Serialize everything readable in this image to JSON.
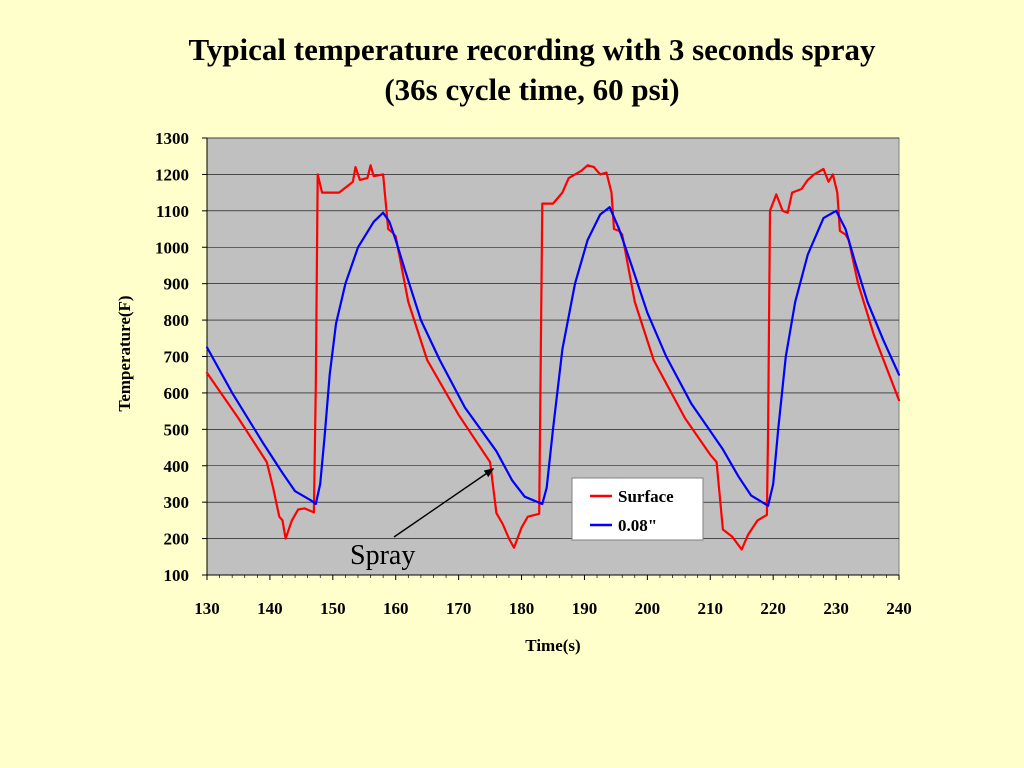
{
  "slide": {
    "title_line1": "Typical temperature recording with 3 seconds spray",
    "title_line2": "(36s cycle time, 60 psi)"
  },
  "chart_data": {
    "type": "line",
    "title": "",
    "xlabel": "Time(s)",
    "ylabel": "Temperature(F)",
    "xlim": [
      130,
      240
    ],
    "ylim": [
      100,
      1300
    ],
    "xticks": [
      130,
      140,
      150,
      160,
      170,
      180,
      190,
      200,
      210,
      220,
      230,
      240
    ],
    "yticks": [
      100,
      200,
      300,
      400,
      500,
      600,
      700,
      800,
      900,
      1000,
      1100,
      1200,
      1300
    ],
    "grid": true,
    "plot_background": "#C0C0C0",
    "legend_position": "bottom-right",
    "series": [
      {
        "name": "Surface",
        "color": "#FF0000",
        "points": [
          [
            130,
            655
          ],
          [
            135,
            530
          ],
          [
            139.5,
            410
          ],
          [
            140.5,
            340
          ],
          [
            141.5,
            260
          ],
          [
            142,
            250
          ],
          [
            142.5,
            200
          ],
          [
            143.5,
            250
          ],
          [
            144.5,
            280
          ],
          [
            145.5,
            283
          ],
          [
            147,
            272
          ],
          [
            147.3,
            620
          ],
          [
            147.6,
            1200
          ],
          [
            148.3,
            1150
          ],
          [
            150,
            1150
          ],
          [
            151,
            1150
          ],
          [
            152.5,
            1170
          ],
          [
            153.2,
            1180
          ],
          [
            153.6,
            1220
          ],
          [
            154.3,
            1185
          ],
          [
            155.5,
            1190
          ],
          [
            156,
            1225
          ],
          [
            156.5,
            1195
          ],
          [
            158,
            1200
          ],
          [
            158.8,
            1050
          ],
          [
            159.5,
            1040
          ],
          [
            160,
            1030
          ],
          [
            162,
            850
          ],
          [
            165,
            690
          ],
          [
            170,
            540
          ],
          [
            175,
            410
          ],
          [
            176,
            270
          ],
          [
            177,
            240
          ],
          [
            178,
            200
          ],
          [
            178.8,
            175
          ],
          [
            180,
            230
          ],
          [
            181,
            260
          ],
          [
            182.8,
            268
          ],
          [
            183,
            600
          ],
          [
            183.3,
            1120
          ],
          [
            185,
            1120
          ],
          [
            186.5,
            1150
          ],
          [
            187.5,
            1190
          ],
          [
            189.5,
            1210
          ],
          [
            190.5,
            1225
          ],
          [
            191.5,
            1220
          ],
          [
            192.5,
            1200
          ],
          [
            193.5,
            1205
          ],
          [
            194.3,
            1150
          ],
          [
            194.7,
            1050
          ],
          [
            195.5,
            1045
          ],
          [
            196,
            1035
          ],
          [
            198,
            850
          ],
          [
            201,
            690
          ],
          [
            206,
            530
          ],
          [
            210,
            430
          ],
          [
            211,
            410
          ],
          [
            212,
            225
          ],
          [
            213.5,
            205
          ],
          [
            215,
            170
          ],
          [
            216,
            210
          ],
          [
            217.5,
            250
          ],
          [
            219,
            265
          ],
          [
            219.2,
            500
          ],
          [
            219.5,
            1100
          ],
          [
            220.5,
            1145
          ],
          [
            221.5,
            1100
          ],
          [
            222.3,
            1095
          ],
          [
            223,
            1150
          ],
          [
            224.5,
            1160
          ],
          [
            225.5,
            1185
          ],
          [
            226.5,
            1200
          ],
          [
            228,
            1215
          ],
          [
            228.8,
            1180
          ],
          [
            229.5,
            1200
          ],
          [
            230.2,
            1150
          ],
          [
            230.6,
            1045
          ],
          [
            231.5,
            1035
          ],
          [
            232,
            1020
          ],
          [
            233.5,
            900
          ],
          [
            236,
            760
          ],
          [
            240,
            580
          ]
        ]
      },
      {
        "name": "0.08\"",
        "color": "#0000FF",
        "points": [
          [
            130,
            725
          ],
          [
            134,
            600
          ],
          [
            139,
            460
          ],
          [
            142,
            380
          ],
          [
            144,
            330
          ],
          [
            146.5,
            305
          ],
          [
            147.3,
            295
          ],
          [
            148,
            350
          ],
          [
            148.7,
            480
          ],
          [
            149.5,
            650
          ],
          [
            150.5,
            790
          ],
          [
            152,
            900
          ],
          [
            154,
            1000
          ],
          [
            156.5,
            1070
          ],
          [
            158,
            1095
          ],
          [
            159,
            1070
          ],
          [
            160,
            1020
          ],
          [
            161.5,
            935
          ],
          [
            164,
            800
          ],
          [
            167,
            690
          ],
          [
            171,
            560
          ],
          [
            176,
            440
          ],
          [
            178.5,
            360
          ],
          [
            180.5,
            315
          ],
          [
            183.3,
            295
          ],
          [
            184,
            340
          ],
          [
            185,
            500
          ],
          [
            186.5,
            720
          ],
          [
            188.5,
            900
          ],
          [
            190.5,
            1020
          ],
          [
            192.5,
            1090
          ],
          [
            194,
            1110
          ],
          [
            195.5,
            1050
          ],
          [
            197.5,
            950
          ],
          [
            200,
            820
          ],
          [
            203,
            700
          ],
          [
            207,
            570
          ],
          [
            212,
            445
          ],
          [
            214.5,
            370
          ],
          [
            216.5,
            318
          ],
          [
            219.2,
            290
          ],
          [
            220,
            350
          ],
          [
            220.8,
            500
          ],
          [
            222,
            700
          ],
          [
            223.5,
            850
          ],
          [
            225.5,
            980
          ],
          [
            228,
            1080
          ],
          [
            230,
            1100
          ],
          [
            231.5,
            1050
          ],
          [
            233,
            960
          ],
          [
            235,
            850
          ],
          [
            237.5,
            745
          ],
          [
            240,
            650
          ]
        ]
      }
    ],
    "annotations": [
      {
        "text": "Spray",
        "x": 176,
        "y": 400
      }
    ]
  }
}
